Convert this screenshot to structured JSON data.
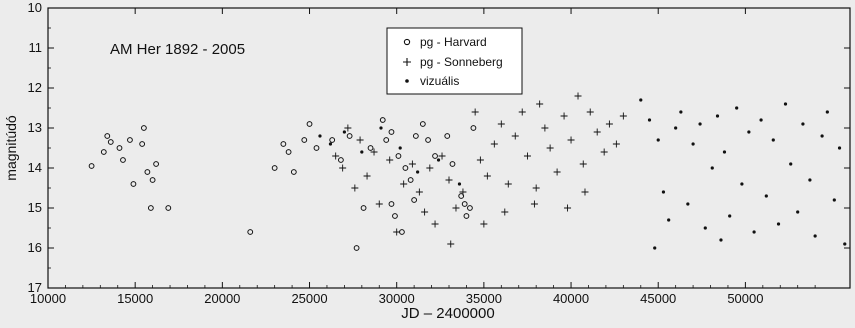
{
  "chart_data": {
    "type": "scatter",
    "title": "AM Her  1892 - 2005",
    "xlabel": "JD – 2400000",
    "ylabel": "magnitúdó",
    "xlim": [
      10000,
      56000
    ],
    "ylim": [
      10,
      17
    ],
    "y_inverted": true,
    "grid": false,
    "legend_position": "top-center",
    "x_ticks": [
      "10000",
      "15000",
      "20000",
      "25000",
      "30000",
      "35000",
      "40000",
      "45000",
      "50000"
    ],
    "x_tick_values": [
      10000,
      15000,
      20000,
      25000,
      30000,
      35000,
      40000,
      45000,
      50000
    ],
    "y_ticks": [
      "10",
      "11",
      "12",
      "13",
      "14",
      "15",
      "16",
      "17"
    ],
    "y_tick_values": [
      10,
      11,
      12,
      13,
      14,
      15,
      16,
      17
    ],
    "series": [
      {
        "name": "pg - Harvard",
        "marker": "circle",
        "points": [
          [
            12500,
            13.95
          ],
          [
            13200,
            13.6
          ],
          [
            13400,
            13.2
          ],
          [
            13600,
            13.35
          ],
          [
            14100,
            13.5
          ],
          [
            14300,
            13.8
          ],
          [
            14700,
            13.3
          ],
          [
            14900,
            14.4
          ],
          [
            15400,
            13.4
          ],
          [
            15500,
            13.0
          ],
          [
            15700,
            14.1
          ],
          [
            16000,
            14.3
          ],
          [
            16200,
            13.9
          ],
          [
            15900,
            15.0
          ],
          [
            16900,
            15.0
          ],
          [
            21600,
            15.6
          ],
          [
            23000,
            14.0
          ],
          [
            23500,
            13.4
          ],
          [
            23800,
            13.6
          ],
          [
            24100,
            14.1
          ],
          [
            24700,
            13.3
          ],
          [
            25000,
            12.9
          ],
          [
            25400,
            13.5
          ],
          [
            26300,
            13.3
          ],
          [
            26800,
            13.8
          ],
          [
            27300,
            13.2
          ],
          [
            28500,
            13.5
          ],
          [
            29200,
            12.8
          ],
          [
            29400,
            13.3
          ],
          [
            29700,
            13.1
          ],
          [
            30100,
            13.7
          ],
          [
            30500,
            14.0
          ],
          [
            30300,
            15.6
          ],
          [
            29900,
            15.2
          ],
          [
            29700,
            14.9
          ],
          [
            31500,
            12.9
          ],
          [
            31800,
            13.3
          ],
          [
            32200,
            13.7
          ],
          [
            32900,
            13.2
          ],
          [
            33200,
            13.9
          ],
          [
            34400,
            13.0
          ],
          [
            33700,
            14.7
          ],
          [
            34000,
            15.2
          ],
          [
            34200,
            15.0
          ],
          [
            33900,
            14.9
          ],
          [
            31000,
            14.8
          ],
          [
            30800,
            14.3
          ],
          [
            28100,
            15.0
          ],
          [
            27700,
            16.0
          ],
          [
            31100,
            13.2
          ]
        ]
      },
      {
        "name": "pg - Sonneberg",
        "marker": "plus",
        "points": [
          [
            26500,
            13.7
          ],
          [
            26900,
            14.0
          ],
          [
            27200,
            13.0
          ],
          [
            27600,
            14.5
          ],
          [
            27900,
            13.3
          ],
          [
            28300,
            14.2
          ],
          [
            28700,
            13.6
          ],
          [
            29000,
            14.9
          ],
          [
            29600,
            13.8
          ],
          [
            30000,
            15.6
          ],
          [
            30400,
            14.4
          ],
          [
            30900,
            13.9
          ],
          [
            31300,
            14.6
          ],
          [
            31600,
            15.1
          ],
          [
            31900,
            14.0
          ],
          [
            32200,
            15.4
          ],
          [
            32600,
            13.7
          ],
          [
            33000,
            14.3
          ],
          [
            33400,
            15.0
          ],
          [
            33800,
            14.6
          ],
          [
            34500,
            12.6
          ],
          [
            34800,
            13.8
          ],
          [
            35200,
            14.2
          ],
          [
            35600,
            13.4
          ],
          [
            36000,
            12.9
          ],
          [
            36400,
            14.4
          ],
          [
            36800,
            13.2
          ],
          [
            37200,
            12.6
          ],
          [
            37500,
            13.7
          ],
          [
            37900,
            14.9
          ],
          [
            38200,
            12.4
          ],
          [
            38500,
            13.0
          ],
          [
            38800,
            13.5
          ],
          [
            39200,
            14.1
          ],
          [
            39600,
            12.7
          ],
          [
            40000,
            13.3
          ],
          [
            40400,
            12.2
          ],
          [
            40700,
            13.9
          ],
          [
            41100,
            12.6
          ],
          [
            41500,
            13.1
          ],
          [
            41900,
            13.6
          ],
          [
            42200,
            12.9
          ],
          [
            42600,
            13.4
          ],
          [
            43000,
            12.7
          ],
          [
            36200,
            15.1
          ],
          [
            38000,
            14.5
          ],
          [
            39800,
            15.0
          ],
          [
            35000,
            15.4
          ],
          [
            33100,
            15.9
          ],
          [
            40800,
            14.6
          ]
        ]
      },
      {
        "name": "vizuális",
        "marker": "dot",
        "points": [
          [
            25600,
            13.2
          ],
          [
            26200,
            13.4
          ],
          [
            27000,
            13.1
          ],
          [
            28000,
            13.6
          ],
          [
            29100,
            13.0
          ],
          [
            30200,
            13.5
          ],
          [
            31200,
            14.1
          ],
          [
            32400,
            13.8
          ],
          [
            33600,
            14.4
          ],
          [
            44000,
            12.3
          ],
          [
            44500,
            12.8
          ],
          [
            45000,
            13.3
          ],
          [
            45300,
            14.6
          ],
          [
            45600,
            15.3
          ],
          [
            46000,
            13.0
          ],
          [
            46300,
            12.6
          ],
          [
            46700,
            14.9
          ],
          [
            47000,
            13.4
          ],
          [
            47400,
            12.9
          ],
          [
            47700,
            15.5
          ],
          [
            48100,
            14.0
          ],
          [
            48400,
            12.7
          ],
          [
            48800,
            13.6
          ],
          [
            49100,
            15.2
          ],
          [
            49500,
            12.5
          ],
          [
            49800,
            14.4
          ],
          [
            50200,
            13.1
          ],
          [
            50500,
            15.6
          ],
          [
            50900,
            12.8
          ],
          [
            51200,
            14.7
          ],
          [
            51600,
            13.3
          ],
          [
            51900,
            15.4
          ],
          [
            52300,
            12.4
          ],
          [
            52600,
            13.9
          ],
          [
            53000,
            15.1
          ],
          [
            53300,
            12.9
          ],
          [
            53700,
            14.3
          ],
          [
            54000,
            15.7
          ],
          [
            54400,
            13.2
          ],
          [
            54700,
            12.6
          ],
          [
            55100,
            14.8
          ],
          [
            55400,
            13.5
          ],
          [
            55700,
            15.9
          ],
          [
            44800,
            16.0
          ],
          [
            48600,
            15.8
          ]
        ]
      }
    ]
  }
}
